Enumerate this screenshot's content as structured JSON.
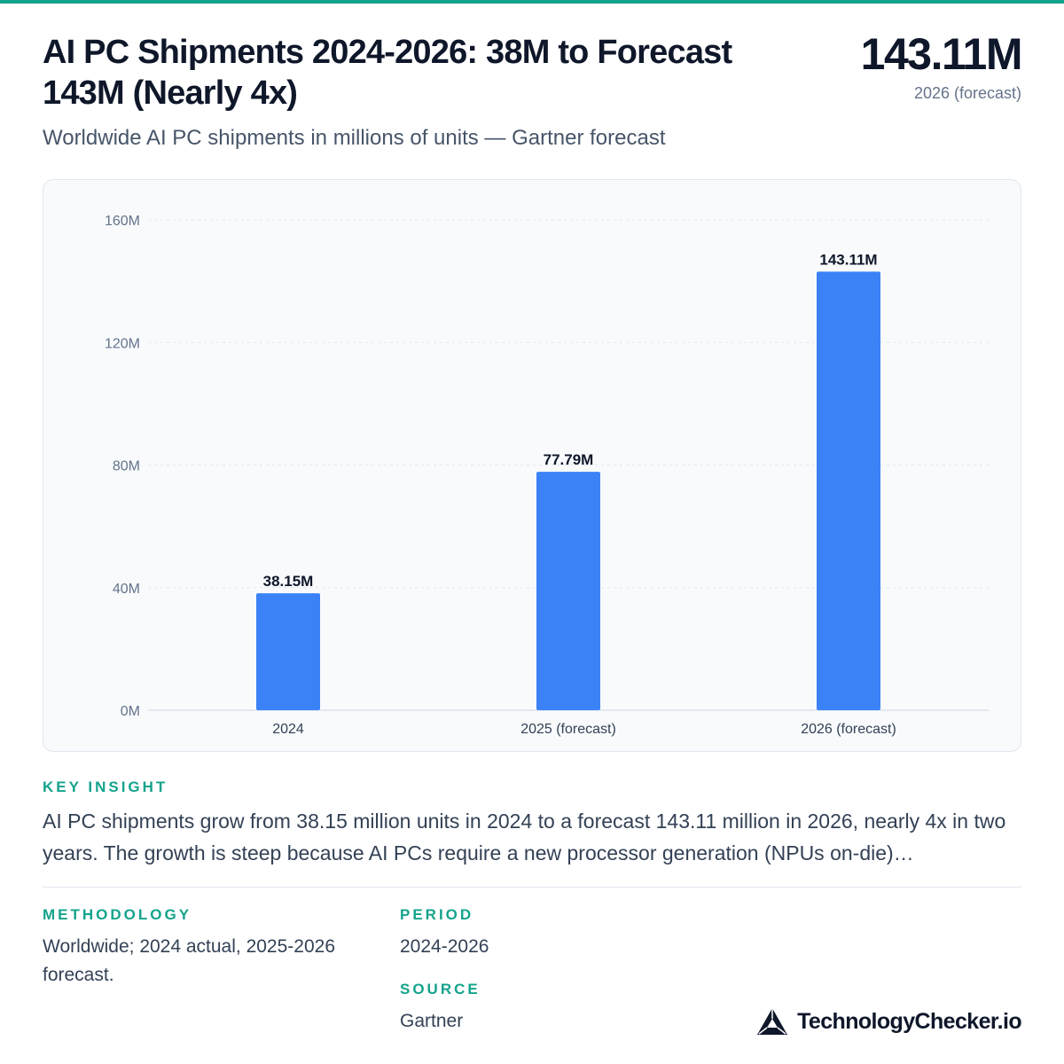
{
  "title": "AI PC Shipments 2024-2026: 38M to Forecast 143M (Nearly 4x)",
  "subtitle": "Worldwide AI PC shipments in millions of units — Gartner forecast",
  "headline": {
    "value": "143.11M",
    "label": "2026 (forecast)"
  },
  "chart_data": {
    "type": "bar",
    "categories": [
      "2024",
      "2025 (forecast)",
      "2026 (forecast)"
    ],
    "values": [
      38.15,
      77.79,
      143.11
    ],
    "value_labels": [
      "38.15M",
      "77.79M",
      "143.11M"
    ],
    "ylim": [
      0,
      160
    ],
    "yticks": [
      0,
      40,
      80,
      120,
      160
    ],
    "ytick_labels": [
      "0M",
      "40M",
      "80M",
      "120M",
      "160M"
    ],
    "title": "",
    "xlabel": "",
    "ylabel": "",
    "grid": true,
    "bar_color": "#3b82f6"
  },
  "insight": {
    "label": "KEY INSIGHT",
    "text": "AI PC shipments grow from 38.15 million units in 2024 to a forecast 143.11 million in 2026, nearly 4x in two years. The growth is steep because AI PCs require a new processor generation (NPUs on-die)…"
  },
  "methodology": {
    "label": "METHODOLOGY",
    "text": "Worldwide; 2024 actual, 2025-2026 forecast."
  },
  "period": {
    "label": "PERIOD",
    "text": "2024-2026"
  },
  "source": {
    "label": "SOURCE",
    "text": "Gartner"
  },
  "brand": {
    "name": "TechnologyChecker.io",
    "icon": "triangle-logo-icon"
  },
  "colors": {
    "accent": "#14a38b",
    "bar": "#3b82f6"
  }
}
